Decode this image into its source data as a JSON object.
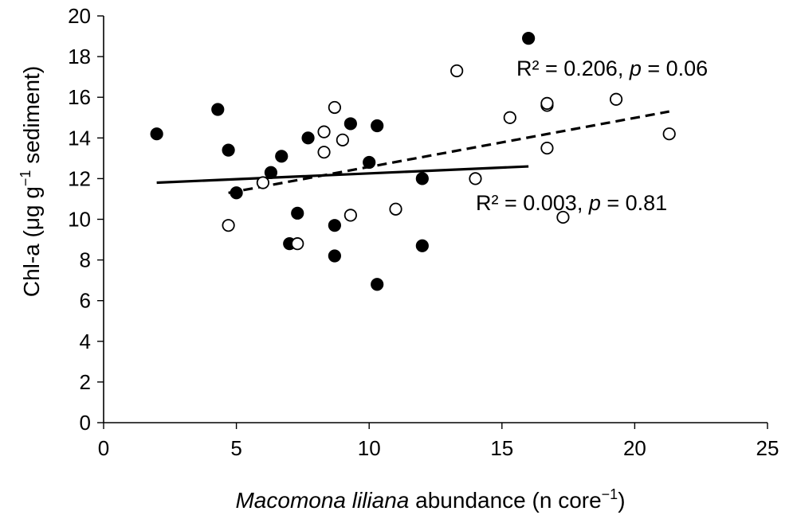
{
  "chart_data": {
    "type": "scatter",
    "xlabel_italic": "Macomona liliana",
    "xlabel_rest": " abundance (n core",
    "xlabel_sup": "−1",
    "xlabel_close": ")",
    "ylabel_pre": "Chl-a (μg g",
    "ylabel_sup": "−1",
    "ylabel_post": " sediment)",
    "xlim": [
      0,
      25
    ],
    "ylim": [
      0,
      20
    ],
    "x_ticks": [
      "0",
      "5",
      "10",
      "15",
      "20",
      "25"
    ],
    "y_ticks": [
      "0",
      "2",
      "4",
      "6",
      "8",
      "10",
      "12",
      "14",
      "16",
      "18",
      "20"
    ],
    "grid": false,
    "series": [
      {
        "marker": "filled-circle",
        "color": "#000000",
        "points": [
          [
            2.0,
            14.2
          ],
          [
            4.3,
            15.4
          ],
          [
            4.7,
            13.4
          ],
          [
            5.0,
            11.3
          ],
          [
            6.3,
            12.3
          ],
          [
            6.7,
            13.1
          ],
          [
            7.0,
            8.8
          ],
          [
            7.3,
            10.3
          ],
          [
            7.7,
            14.0
          ],
          [
            8.7,
            9.7
          ],
          [
            8.7,
            8.2
          ],
          [
            9.3,
            14.7
          ],
          [
            10.0,
            12.8
          ],
          [
            10.3,
            14.6
          ],
          [
            10.3,
            6.8
          ],
          [
            12.0,
            12.0
          ],
          [
            12.0,
            8.7
          ],
          [
            16.0,
            18.9
          ]
        ],
        "trendline": {
          "style": "solid",
          "x": [
            2.0,
            16.0
          ],
          "y": [
            11.8,
            12.6
          ]
        }
      },
      {
        "marker": "open-circle",
        "color": "#000000",
        "points": [
          [
            4.7,
            9.7
          ],
          [
            6.0,
            11.8
          ],
          [
            7.3,
            8.8
          ],
          [
            8.3,
            14.3
          ],
          [
            8.3,
            13.3
          ],
          [
            8.7,
            15.5
          ],
          [
            9.0,
            13.9
          ],
          [
            9.3,
            10.2
          ],
          [
            11.0,
            10.5
          ],
          [
            13.3,
            17.3
          ],
          [
            14.0,
            12.0
          ],
          [
            15.3,
            15.0
          ],
          [
            16.7,
            15.6
          ],
          [
            16.7,
            15.7
          ],
          [
            16.7,
            13.5
          ],
          [
            17.3,
            10.1
          ],
          [
            19.3,
            15.9
          ],
          [
            21.3,
            14.2
          ]
        ],
        "trendline": {
          "style": "dashed",
          "x": [
            4.7,
            21.3
          ],
          "y": [
            11.3,
            15.3
          ]
        }
      }
    ],
    "annotations": [
      {
        "r2": "R² = 0.206, ",
        "p_italic": "p",
        "p_rest": " = 0.06"
      },
      {
        "r2": "R² = 0.003, ",
        "p_italic": "p",
        "p_rest": " = 0.81"
      }
    ]
  }
}
